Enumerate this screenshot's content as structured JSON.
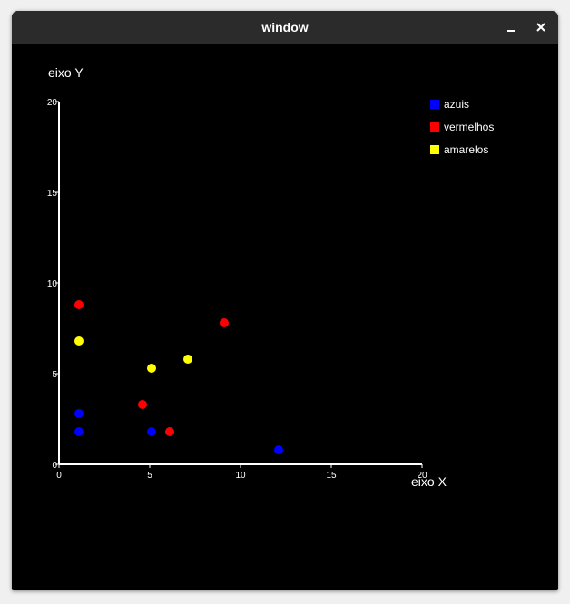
{
  "window": {
    "title": "window",
    "minimize_icon": "minimize-icon",
    "close_icon": "close-icon"
  },
  "colors": {
    "background": "#000000",
    "titlebar": "#2b2b2b",
    "axis": "#ffffff"
  },
  "chart_data": {
    "type": "scatter",
    "title": "",
    "xlabel": "eixo X",
    "ylabel": "eixo Y",
    "xlim": [
      0,
      20
    ],
    "ylim": [
      0,
      20
    ],
    "xticks": [
      0,
      5,
      10,
      15,
      20
    ],
    "yticks": [
      0,
      5,
      10,
      15,
      20
    ],
    "grid": false,
    "legend_position": "top-right",
    "series": [
      {
        "name": "azuis",
        "color": "#0000ff",
        "points": [
          [
            1.1,
            1.8
          ],
          [
            1.1,
            2.8
          ],
          [
            5.1,
            1.8
          ],
          [
            12.1,
            0.8
          ]
        ]
      },
      {
        "name": "vermelhos",
        "color": "#ff0000",
        "points": [
          [
            1.1,
            8.8
          ],
          [
            4.6,
            3.3
          ],
          [
            6.1,
            1.8
          ],
          [
            9.1,
            7.8
          ]
        ]
      },
      {
        "name": "amarelos",
        "color": "#ffff00",
        "points": [
          [
            1.1,
            6.8
          ],
          [
            5.1,
            5.3
          ],
          [
            7.1,
            5.8
          ]
        ]
      }
    ]
  }
}
